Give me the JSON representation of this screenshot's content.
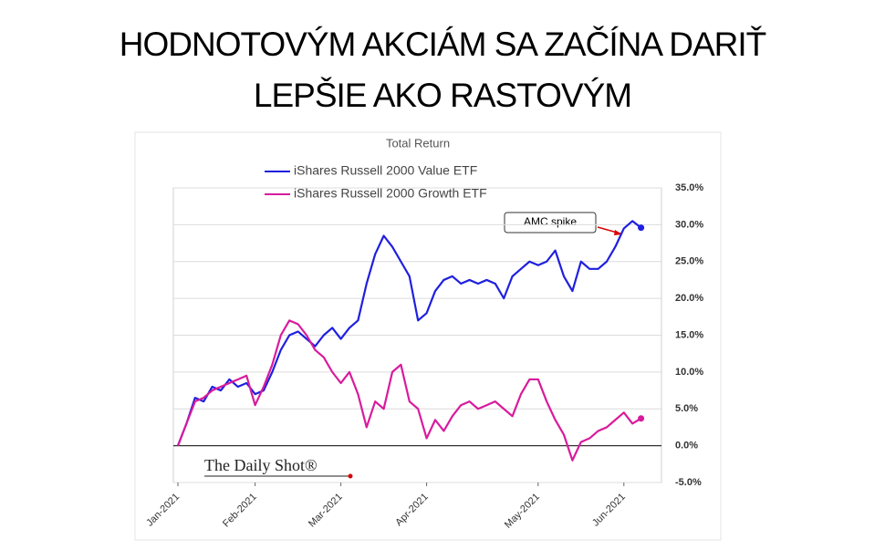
{
  "slide_title": [
    "HODNOTOVÝM AKCIÁM SA ZAČÍNA DARIŤ",
    "LEPŠIE AKO RASTOVÝM"
  ],
  "chart_data": {
    "type": "line",
    "title": "Total Return",
    "categories": [
      "Jan-2021",
      null,
      null,
      null,
      null,
      null,
      null,
      null,
      null,
      "Feb-2021",
      null,
      null,
      null,
      null,
      null,
      null,
      null,
      null,
      null,
      "Mar-2021",
      null,
      null,
      null,
      null,
      null,
      null,
      null,
      null,
      null,
      "Apr-2021",
      null,
      null,
      null,
      null,
      null,
      null,
      null,
      null,
      null,
      null,
      null,
      null,
      "May-2021",
      null,
      null,
      null,
      null,
      null,
      null,
      null,
      null,
      null,
      "Jun-2021",
      null,
      null
    ],
    "series": [
      {
        "name": "iShares Russell 2000 Value ETF",
        "color": "#1f1fe0",
        "values": [
          0,
          3,
          6.5,
          6,
          8,
          7.5,
          9,
          8,
          8.5,
          7,
          7.5,
          10,
          13,
          15,
          15.5,
          14.5,
          13.5,
          15,
          16,
          14.5,
          16,
          17,
          22,
          26,
          28.5,
          27,
          25,
          23,
          17,
          18,
          21,
          22.5,
          23,
          22,
          22.5,
          22,
          22.5,
          22,
          20,
          23,
          24,
          25,
          24.5,
          25,
          26.5,
          23,
          21,
          25,
          24,
          24,
          25,
          27,
          29.5,
          30.5,
          29.6
        ]
      },
      {
        "name": "iShares Russell 2000 Growth ETF",
        "color": "#d81b9c",
        "values": [
          0,
          3,
          6,
          6.5,
          7.5,
          8,
          8.5,
          9,
          9.5,
          5.5,
          8,
          11,
          15,
          17,
          16.5,
          15,
          13,
          12,
          10,
          8.5,
          10,
          7,
          2.5,
          6,
          5,
          10,
          11,
          6,
          5,
          1,
          3.5,
          2,
          4,
          5.5,
          6,
          5,
          5.5,
          6,
          5,
          4,
          7,
          9,
          9,
          6,
          3.5,
          1.5,
          -2,
          0.5,
          1,
          2,
          2.5,
          3.5,
          4.5,
          3,
          3.7
        ]
      }
    ],
    "ylim": [
      -5,
      35
    ],
    "yticks": [
      {
        "value": -5,
        "label": "-5.0%"
      },
      {
        "value": 0,
        "label": "0.0%"
      },
      {
        "value": 5,
        "label": "5.0%"
      },
      {
        "value": 10,
        "label": "10.0%"
      },
      {
        "value": 15,
        "label": "15.0%"
      },
      {
        "value": 20,
        "label": "20.0%"
      },
      {
        "value": 25,
        "label": "25.0%"
      },
      {
        "value": 30,
        "label": "30.0%"
      },
      {
        "value": 35,
        "label": "35.0%"
      }
    ],
    "grid": true,
    "y_axis_side": "right",
    "legend": "top-left",
    "annotations": [
      "AMC spike",
      "The Daily Shot®"
    ]
  }
}
